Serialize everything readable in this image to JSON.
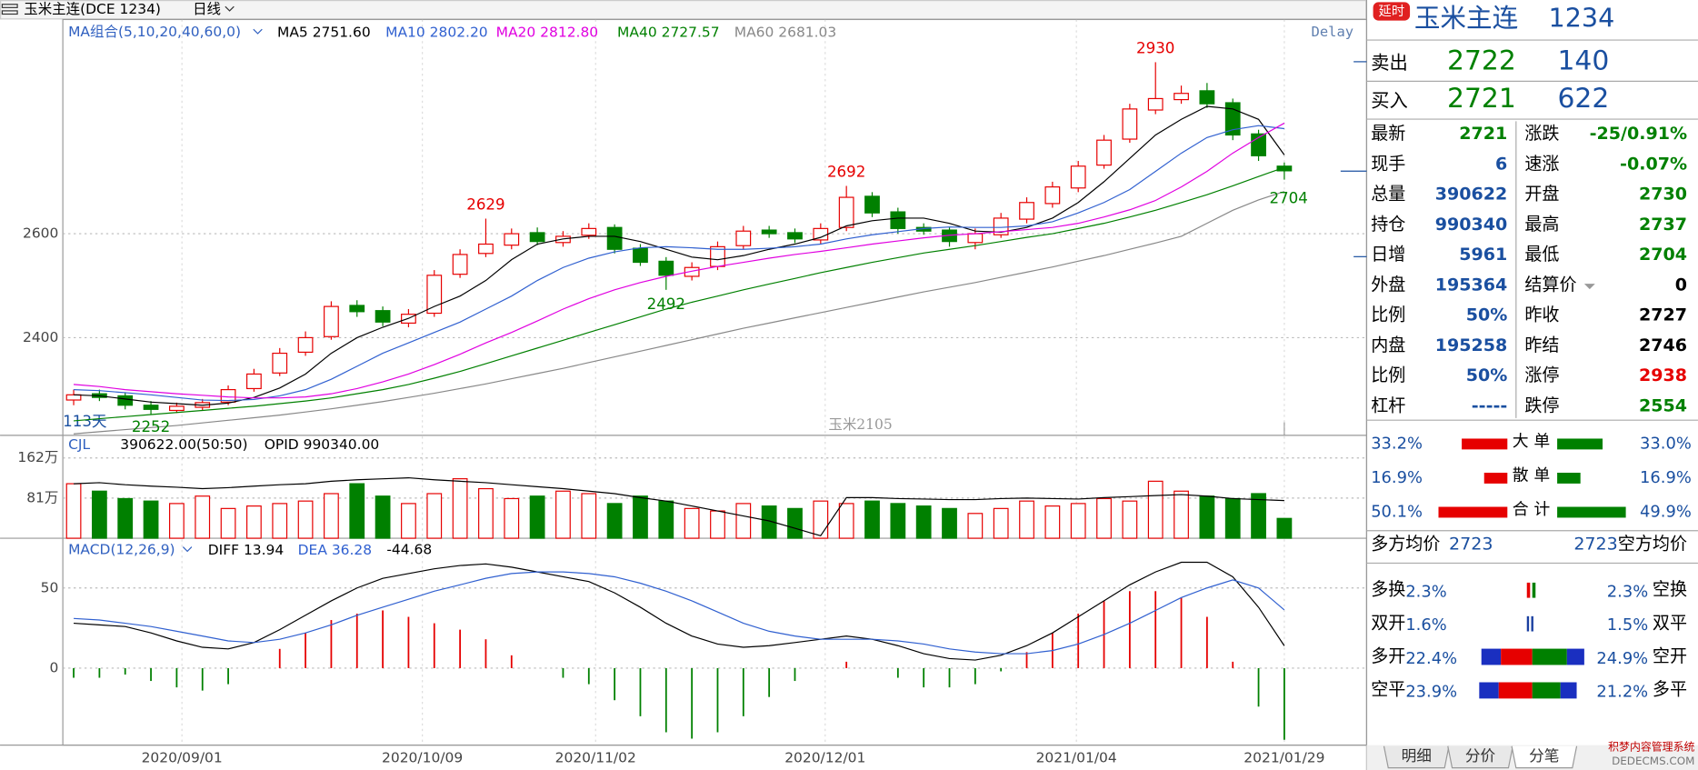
{
  "window": {
    "title": "玉米主连(DCE 1234)",
    "period": "日线",
    "delay": "Delay",
    "days": "113天",
    "contract": "玉米2105",
    "watermark": [
      "积梦内容管理系统",
      "DEDECMS.COM"
    ]
  },
  "x_axis": [
    "2020/09/01",
    "2020/10/09",
    "2020/11/02",
    "2020/12/01",
    "2021/01/04",
    "2021/01/29"
  ],
  "chart_data": [
    {
      "type": "candlestick",
      "title": "MA组合(5,10,20,40,60,0)",
      "up_color": "#e60000",
      "down_color": "#008000",
      "open": [
        2280,
        2292,
        2288,
        2270,
        2260,
        2266,
        2276,
        2302,
        2332,
        2372,
        2402,
        2462,
        2452,
        2428,
        2447,
        2522,
        2562,
        2578,
        2602,
        2583,
        2597,
        2612,
        2572,
        2547,
        2518,
        2537,
        2577,
        2607,
        2602,
        2588,
        2612,
        2672,
        2642,
        2612,
        2607,
        2583,
        2598,
        2628,
        2658,
        2688,
        2732,
        2782,
        2838,
        2858,
        2875,
        2852,
        2792,
        2730
      ],
      "high": [
        2300,
        2300,
        2295,
        2278,
        2275,
        2282,
        2308,
        2340,
        2380,
        2412,
        2470,
        2472,
        2460,
        2455,
        2530,
        2570,
        2629,
        2610,
        2612,
        2605,
        2620,
        2618,
        2580,
        2555,
        2545,
        2585,
        2615,
        2615,
        2610,
        2620,
        2692,
        2680,
        2650,
        2620,
        2612,
        2610,
        2640,
        2670,
        2700,
        2740,
        2790,
        2850,
        2930,
        2885,
        2890,
        2860,
        2800,
        2737
      ],
      "low": [
        2270,
        2278,
        2262,
        2252,
        2255,
        2260,
        2270,
        2296,
        2326,
        2365,
        2396,
        2440,
        2422,
        2420,
        2440,
        2515,
        2555,
        2570,
        2578,
        2575,
        2590,
        2562,
        2538,
        2492,
        2510,
        2530,
        2570,
        2592,
        2582,
        2580,
        2605,
        2632,
        2600,
        2598,
        2575,
        2570,
        2592,
        2620,
        2650,
        2680,
        2725,
        2775,
        2830,
        2850,
        2842,
        2780,
        2740,
        2704
      ],
      "close": [
        2290,
        2285,
        2270,
        2262,
        2268,
        2275,
        2300,
        2330,
        2370,
        2400,
        2460,
        2450,
        2430,
        2445,
        2520,
        2560,
        2580,
        2600,
        2585,
        2595,
        2610,
        2570,
        2545,
        2520,
        2535,
        2575,
        2605,
        2600,
        2590,
        2610,
        2670,
        2640,
        2610,
        2605,
        2585,
        2600,
        2630,
        2660,
        2690,
        2730,
        2780,
        2840,
        2860,
        2870,
        2850,
        2790,
        2750,
        2721
      ],
      "series": [
        {
          "name": "MA5",
          "color": "#000000",
          "legend_value": "2751.60",
          "values": [
            2290,
            2288,
            2282,
            2276,
            2273,
            2270,
            2274,
            2285,
            2303,
            2330,
            2370,
            2400,
            2420,
            2437,
            2460,
            2480,
            2510,
            2550,
            2580,
            2590,
            2595,
            2595,
            2585,
            2570,
            2555,
            2550,
            2558,
            2570,
            2580,
            2593,
            2615,
            2625,
            2630,
            2630,
            2620,
            2605,
            2603,
            2612,
            2630,
            2660,
            2700,
            2745,
            2790,
            2820,
            2845,
            2840,
            2820,
            2751.6
          ]
        },
        {
          "name": "MA10",
          "color": "#3060d0",
          "legend_value": "2802.20",
          "values": [
            2300,
            2298,
            2294,
            2290,
            2285,
            2280,
            2279,
            2281,
            2288,
            2300,
            2320,
            2345,
            2370,
            2390,
            2410,
            2430,
            2455,
            2480,
            2510,
            2535,
            2553,
            2565,
            2573,
            2575,
            2573,
            2570,
            2570,
            2572,
            2575,
            2580,
            2590,
            2598,
            2604,
            2610,
            2613,
            2612,
            2612,
            2615,
            2623,
            2640,
            2660,
            2685,
            2720,
            2755,
            2785,
            2800,
            2808,
            2802.2
          ]
        },
        {
          "name": "MA20",
          "color": "#e000e0",
          "legend_value": "2812.80",
          "values": [
            2310,
            2306,
            2300,
            2296,
            2292,
            2289,
            2286,
            2284,
            2284,
            2286,
            2292,
            2302,
            2315,
            2330,
            2348,
            2368,
            2390,
            2410,
            2432,
            2455,
            2475,
            2492,
            2506,
            2518,
            2528,
            2537,
            2545,
            2553,
            2560,
            2566,
            2573,
            2580,
            2586,
            2592,
            2597,
            2600,
            2604,
            2608,
            2612,
            2620,
            2632,
            2646,
            2664,
            2690,
            2720,
            2755,
            2785,
            2812.8
          ]
        },
        {
          "name": "MA40",
          "color": "#008000",
          "legend_value": "2727.57",
          "values": [
            2240,
            2244,
            2248,
            2252,
            2256,
            2260,
            2264,
            2268,
            2273,
            2278,
            2284,
            2292,
            2300,
            2310,
            2322,
            2335,
            2350,
            2365,
            2380,
            2395,
            2410,
            2425,
            2440,
            2455,
            2468,
            2480,
            2492,
            2503,
            2514,
            2525,
            2535,
            2545,
            2554,
            2563,
            2570,
            2577,
            2585,
            2593,
            2600,
            2610,
            2620,
            2632,
            2645,
            2660,
            2675,
            2692,
            2710,
            2727.57
          ]
        },
        {
          "name": "MA60",
          "color": "#888888",
          "legend_value": "2681.03",
          "values": [
            2215,
            2219,
            2223,
            2227,
            2231,
            2236,
            2241,
            2246,
            2251,
            2257,
            2263,
            2270,
            2277,
            2285,
            2293,
            2302,
            2311,
            2321,
            2331,
            2341,
            2352,
            2363,
            2374,
            2385,
            2396,
            2407,
            2418,
            2428,
            2438,
            2448,
            2458,
            2468,
            2478,
            2488,
            2497,
            2506,
            2516,
            2526,
            2536,
            2547,
            2558,
            2570,
            2582,
            2595,
            2620,
            2645,
            2665,
            2681.03
          ]
        }
      ],
      "ylim": [
        2212,
        3008
      ],
      "yticks": [
        2400,
        2600
      ],
      "grid": true
    },
    {
      "type": "bar",
      "title": "CJL",
      "subtitle": "390622.00(50:50)",
      "note": "OPID 990340.00",
      "values": [
        110,
        95,
        80,
        75,
        70,
        85,
        60,
        65,
        70,
        75,
        90,
        110,
        85,
        70,
        90,
        120,
        100,
        80,
        85,
        95,
        90,
        70,
        85,
        75,
        60,
        55,
        70,
        65,
        60,
        75,
        70,
        75,
        70,
        65,
        60,
        50,
        60,
        75,
        65,
        70,
        80,
        75,
        115,
        95,
        85,
        80,
        90,
        40
      ],
      "line": [
        110,
        112,
        108,
        105,
        103,
        100,
        102,
        105,
        108,
        110,
        115,
        118,
        120,
        122,
        118,
        115,
        112,
        108,
        104,
        100,
        95,
        90,
        82,
        75,
        65,
        55,
        45,
        35,
        20,
        5,
        82,
        82,
        80,
        79,
        78,
        78,
        80,
        81,
        80,
        79,
        82,
        84,
        86,
        88,
        85,
        80,
        78,
        76
      ],
      "ylim": [
        0,
        201
      ],
      "yticks": [
        {
          "value": 81,
          "label": "81万"
        },
        {
          "value": 162,
          "label": "162万"
        }
      ],
      "grid": true
    },
    {
      "type": "line",
      "title": "MACD(12,26,9)",
      "series": [
        {
          "name": "DIFF",
          "color": "#000000",
          "values": [
            28,
            27,
            26,
            22,
            17,
            13,
            12,
            16,
            24,
            33,
            42,
            50,
            56,
            59,
            62,
            64,
            65,
            63,
            60,
            57,
            54,
            47,
            38,
            28,
            20,
            15,
            13,
            14,
            16,
            18,
            20,
            18,
            14,
            9,
            6,
            5,
            8,
            14,
            22,
            32,
            42,
            52,
            60,
            66,
            66,
            57,
            38,
            13.94
          ]
        },
        {
          "name": "DEA",
          "color": "#3060d0",
          "values": [
            31,
            30,
            28,
            26,
            23,
            20,
            17,
            16,
            18,
            22,
            27,
            33,
            38,
            43,
            48,
            52,
            56,
            59,
            60,
            60,
            59,
            57,
            53,
            48,
            42,
            35,
            28,
            23,
            20,
            18,
            18,
            18,
            17,
            15,
            12,
            10,
            9,
            9,
            11,
            15,
            21,
            28,
            36,
            44,
            50,
            55,
            50,
            36.28
          ]
        }
      ],
      "histogram": [
        -6,
        -6,
        -4,
        -8,
        -12,
        -14,
        -10,
        0,
        12,
        22,
        30,
        34,
        36,
        32,
        28,
        24,
        18,
        8,
        0,
        -6,
        -10,
        -20,
        -30,
        -40,
        -44,
        -40,
        -30,
        -18,
        -8,
        0,
        4,
        0,
        -6,
        -12,
        -12,
        -10,
        -2,
        10,
        22,
        34,
        42,
        48,
        48,
        44,
        32,
        4,
        -24,
        -44.68
      ],
      "ylim": [
        -48,
        79
      ],
      "yticks": [
        0,
        50
      ],
      "grid": true
    }
  ],
  "quote": {
    "badge": "延时",
    "name": "玉米主连",
    "code": "1234",
    "ask": {
      "label": "卖出",
      "price": "2722",
      "volume": "140"
    },
    "bid": {
      "label": "买入",
      "price": "2721",
      "volume": "622"
    },
    "rows": [
      [
        "最新",
        "2721",
        "涨跌",
        "-25/0.91%"
      ],
      [
        "现手",
        "6",
        "速涨",
        "-0.07%"
      ],
      [
        "总量",
        "390622",
        "开盘",
        "2730"
      ],
      [
        "持仓",
        "990340",
        "最高",
        "2737"
      ],
      [
        "日增",
        "5961",
        "最低",
        "2704"
      ],
      [
        "外盘",
        "195364",
        "结算价",
        "0"
      ],
      [
        "比例",
        "50%",
        "昨收",
        "2727"
      ],
      [
        "内盘",
        "195258",
        "昨结",
        "2746"
      ],
      [
        "比例",
        "50%",
        "涨停",
        "2938"
      ],
      [
        "杠杆",
        "-----",
        "跌停",
        "2554"
      ]
    ],
    "flows": [
      {
        "left": {
          "value": 33.2,
          "label": "33.2%"
        },
        "name": "大 单",
        "right": {
          "value": 33.0,
          "label": "33.0%"
        }
      },
      {
        "left": {
          "value": 16.9,
          "label": "16.9%"
        },
        "name": "散 单",
        "right": {
          "value": 16.9,
          "label": "16.9%"
        }
      },
      {
        "left": {
          "value": 50.1,
          "label": "50.1%"
        },
        "name": "合 计",
        "right": {
          "value": 49.9,
          "label": "49.9%"
        }
      }
    ],
    "avg": {
      "long_label": "多方均价",
      "long": "2723",
      "short": "2723",
      "short_label": "空方均价"
    },
    "positions": [
      [
        "多换",
        "2.3%",
        "2.3%",
        "空换"
      ],
      [
        "双开",
        "1.6%",
        "1.5%",
        "双平"
      ],
      [
        "多开",
        "22.4%",
        "24.9%",
        "空开"
      ],
      [
        "空平",
        "23.9%",
        "21.2%",
        "多平"
      ]
    ],
    "tabs": [
      "明细",
      "分价",
      "分笔"
    ]
  }
}
